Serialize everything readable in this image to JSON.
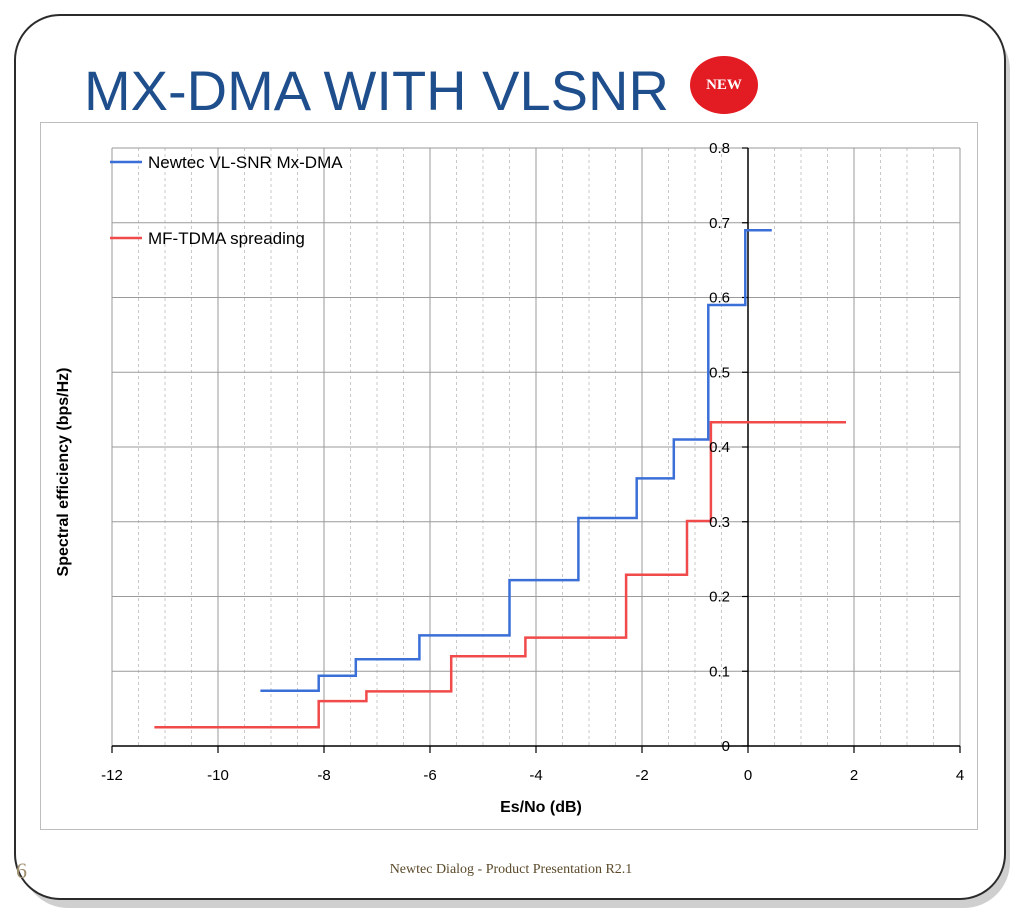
{
  "slide": {
    "title": "MX-DMA WITH VLSNR",
    "badge": "NEW",
    "footer": "Newtec Dialog - Product Presentation R2.1",
    "page_number": "6"
  },
  "chart_data": {
    "type": "line",
    "step": true,
    "title": "",
    "xlabel": "Es/No (dB)",
    "ylabel": "Spectral efficiency (bps/Hz)",
    "xlim": [
      -12,
      4
    ],
    "ylim": [
      0,
      0.8
    ],
    "xticks": [
      "-12",
      "-10",
      "-8",
      "-6",
      "-4",
      "-2",
      "0",
      "2",
      "4"
    ],
    "yticks": [
      "0",
      "0.1",
      "0.2",
      "0.3",
      "0.4",
      "0.5",
      "0.6",
      "0.7",
      "0.8"
    ],
    "grid": true,
    "legend_position": "top-left",
    "series": [
      {
        "name": "Newtec VL-SNR Mx-DMA",
        "color": "#3a6fd8",
        "points": [
          [
            -9.2,
            0.074
          ],
          [
            -8.1,
            0.074
          ],
          [
            -8.1,
            0.094
          ],
          [
            -7.4,
            0.094
          ],
          [
            -7.4,
            0.116
          ],
          [
            -6.2,
            0.116
          ],
          [
            -6.2,
            0.148
          ],
          [
            -4.5,
            0.148
          ],
          [
            -4.5,
            0.222
          ],
          [
            -3.2,
            0.222
          ],
          [
            -3.2,
            0.305
          ],
          [
            -2.1,
            0.305
          ],
          [
            -2.1,
            0.358
          ],
          [
            -1.4,
            0.358
          ],
          [
            -1.4,
            0.41
          ],
          [
            -0.75,
            0.41
          ],
          [
            -0.75,
            0.59
          ],
          [
            -0.05,
            0.59
          ],
          [
            -0.05,
            0.69
          ],
          [
            0.45,
            0.69
          ]
        ]
      },
      {
        "name": "MF-TDMA spreading",
        "color": "#f04a4a",
        "points": [
          [
            -11.2,
            0.025
          ],
          [
            -8.1,
            0.025
          ],
          [
            -8.1,
            0.06
          ],
          [
            -7.2,
            0.06
          ],
          [
            -7.2,
            0.073
          ],
          [
            -5.6,
            0.073
          ],
          [
            -5.6,
            0.12
          ],
          [
            -4.2,
            0.12
          ],
          [
            -4.2,
            0.145
          ],
          [
            -2.3,
            0.145
          ],
          [
            -2.3,
            0.229
          ],
          [
            -1.15,
            0.229
          ],
          [
            -1.15,
            0.301
          ],
          [
            -0.7,
            0.301
          ],
          [
            -0.7,
            0.433
          ],
          [
            1.85,
            0.433
          ]
        ]
      }
    ]
  }
}
